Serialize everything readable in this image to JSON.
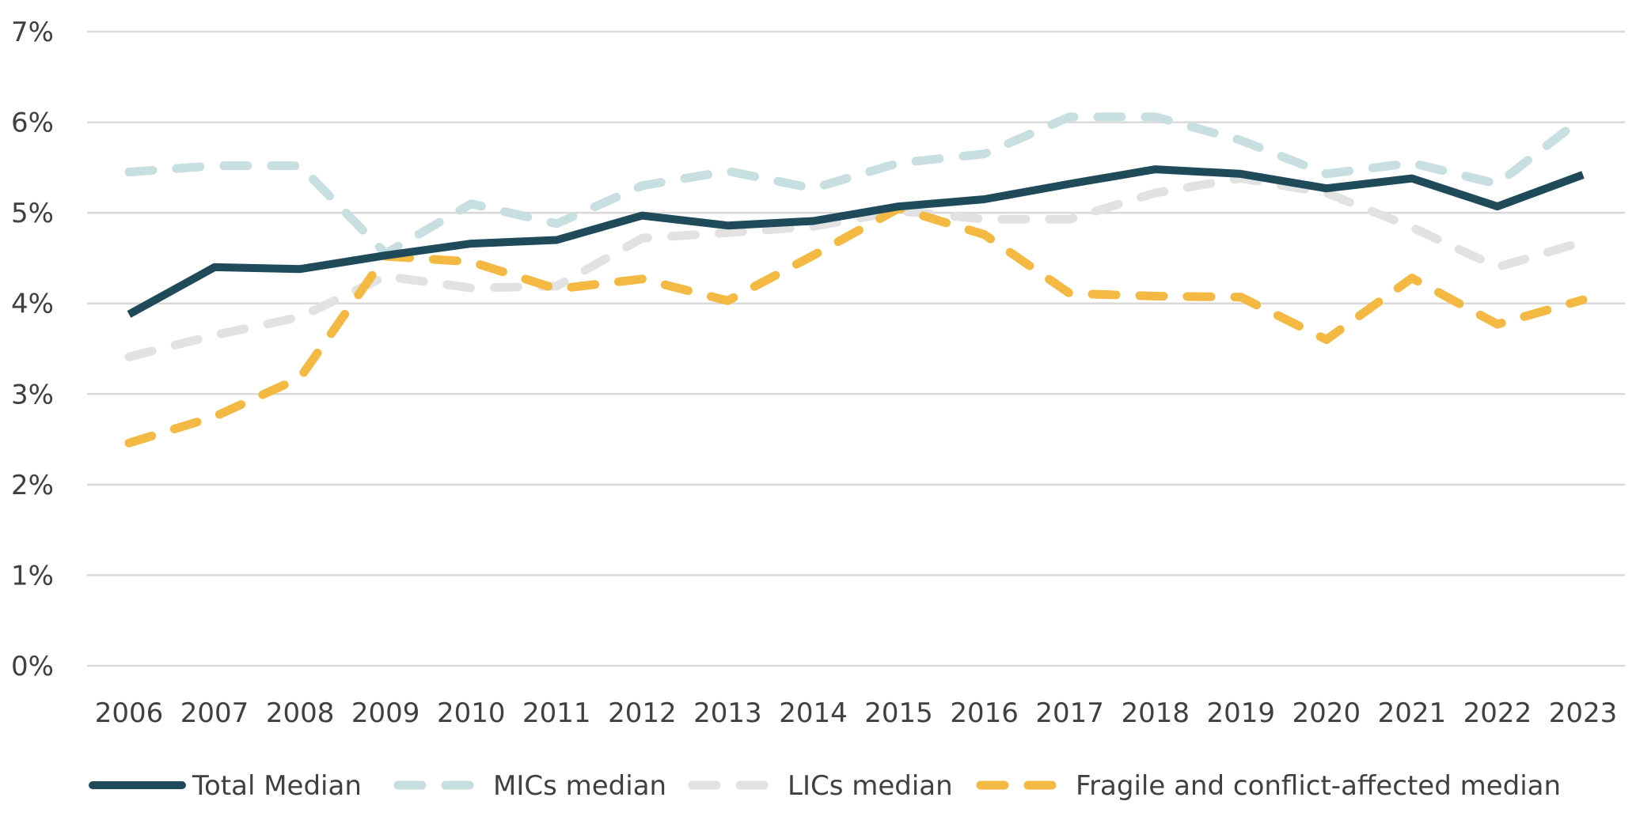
{
  "chart_data": {
    "type": "line",
    "title": "",
    "xlabel": "",
    "ylabel": "",
    "x": [
      "2006",
      "2007",
      "2008",
      "2009",
      "2010",
      "2011",
      "2012",
      "2013",
      "2014",
      "2015",
      "2016",
      "2017",
      "2018",
      "2019",
      "2020",
      "2021",
      "2022",
      "2023"
    ],
    "ylim": [
      0,
      7
    ],
    "y_ticks": [
      0,
      1,
      2,
      3,
      4,
      5,
      6,
      7
    ],
    "y_tick_labels": [
      "0%",
      "1%",
      "2%",
      "3%",
      "4%",
      "5%",
      "6%",
      "7%"
    ],
    "grid": true,
    "legend_position": "bottom",
    "series": [
      {
        "name": "Total Median",
        "color": "#1e4a5a",
        "style": "solid",
        "values": [
          3.88,
          4.4,
          4.38,
          4.53,
          4.66,
          4.7,
          4.97,
          4.86,
          4.91,
          5.07,
          5.15,
          5.32,
          5.48,
          5.43,
          5.27,
          5.38,
          5.07,
          5.42
        ]
      },
      {
        "name": "MICs median",
        "color": "#c8dfe1",
        "style": "dashed",
        "values": [
          5.45,
          5.52,
          5.52,
          4.55,
          5.1,
          4.88,
          5.3,
          5.46,
          5.27,
          5.55,
          5.65,
          6.06,
          6.06,
          5.8,
          5.43,
          5.55,
          5.32,
          6.05
        ]
      },
      {
        "name": "LICs median",
        "color": "#e2e2e2",
        "style": "dashed",
        "values": [
          3.41,
          3.65,
          3.85,
          4.3,
          4.17,
          4.19,
          4.72,
          4.78,
          4.85,
          5.02,
          4.93,
          4.93,
          5.22,
          5.38,
          5.22,
          4.84,
          4.4,
          4.68
        ]
      },
      {
        "name": "Fragile and conflict-affected median",
        "color": "#f4b942",
        "style": "dashed",
        "values": [
          2.46,
          2.75,
          3.18,
          4.52,
          4.46,
          4.16,
          4.27,
          4.03,
          4.53,
          5.05,
          4.76,
          4.11,
          4.08,
          4.07,
          3.6,
          4.28,
          3.77,
          4.04
        ]
      }
    ]
  }
}
